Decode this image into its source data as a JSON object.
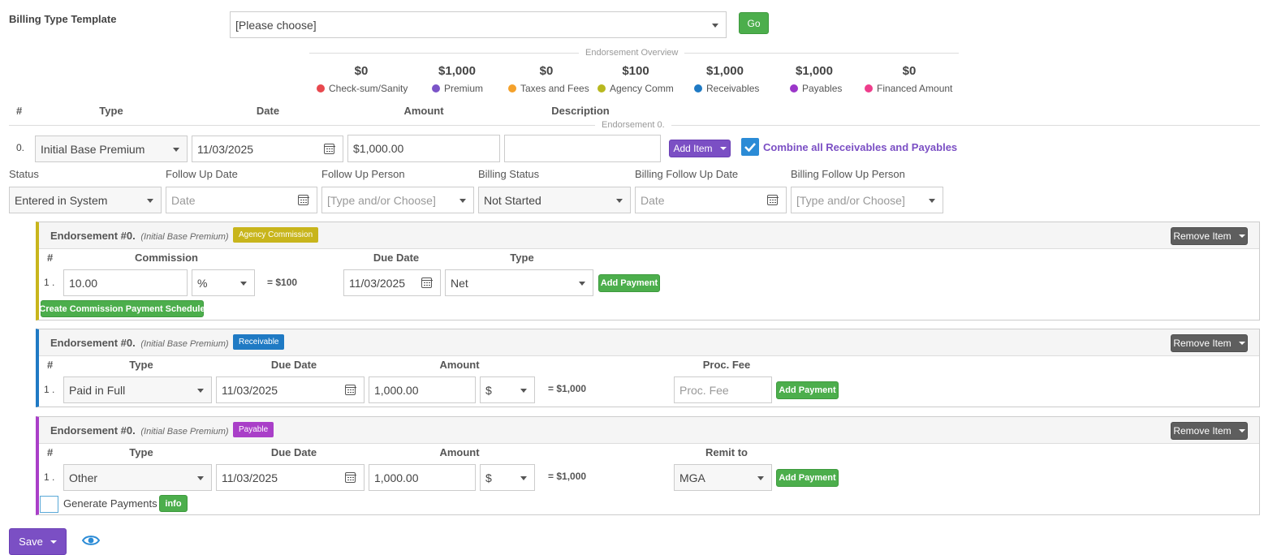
{
  "billing_template": {
    "label": "Billing Type Template",
    "select_value": "[Please choose]",
    "go_label": "Go"
  },
  "overview": {
    "title": "Endorsement Overview",
    "items": [
      {
        "value": "$0",
        "label": "Check-sum/Sanity",
        "color": "#e8484e"
      },
      {
        "value": "$1,000",
        "label": "Premium",
        "color": "#7b54c8"
      },
      {
        "value": "$0",
        "label": "Taxes and Fees",
        "color": "#f4a12b"
      },
      {
        "value": "$100",
        "label": "Agency Comm",
        "color": "#b8b81f"
      },
      {
        "value": "$1,000",
        "label": "Receivables",
        "color": "#1f7ac4"
      },
      {
        "value": "$1,000",
        "label": "Payables",
        "color": "#9b36c9"
      },
      {
        "value": "$0",
        "label": "Financed Amount",
        "color": "#ee3d8b"
      }
    ]
  },
  "items_table": {
    "headers": {
      "num": "#",
      "type": "Type",
      "date": "Date",
      "amount": "Amount",
      "description": "Description"
    },
    "endorsement_divider": "Endorsement 0.",
    "row": {
      "num": "0.",
      "type": "Initial Base Premium",
      "date": "11/03/2025",
      "amount": "$1,000.00",
      "description": ""
    },
    "add_item_label": "Add Item",
    "combine_label": "Combine all Receivables and Payables"
  },
  "status_row": {
    "labels": {
      "status": "Status",
      "follow_up_date": "Follow Up Date",
      "follow_up_person": "Follow Up Person",
      "billing_status": "Billing Status",
      "billing_follow_up_date": "Billing Follow Up Date",
      "billing_follow_up_person": "Billing Follow Up Person"
    },
    "status_value": "Entered in System",
    "follow_up_date_placeholder": "Date",
    "follow_up_person_placeholder": "[Type and/or Choose]",
    "billing_status_value": "Not Started",
    "billing_follow_up_date_placeholder": "Date",
    "billing_follow_up_person_placeholder": "[Type and/or Choose]"
  },
  "commission_panel": {
    "title": "Endorsement #0.",
    "subtitle": "(Initial Base Premium)",
    "badge": "Agency Commission",
    "badge_color": "#c8b51c",
    "remove_label": "Remove Item",
    "headers": {
      "num": "#",
      "commission": "Commission",
      "due_date": "Due Date",
      "type": "Type"
    },
    "row": {
      "num": "1 .",
      "commission": "10.00",
      "unit": "%",
      "equals": "= $100",
      "due_date": "11/03/2025",
      "type": "Net"
    },
    "add_payment_label": "Add Payment",
    "schedule_label": "Create Commission Payment Schedule"
  },
  "receivable_panel": {
    "title": "Endorsement #0.",
    "subtitle": "(Initial Base Premium)",
    "badge": "Receivable",
    "badge_color": "#1f7ac4",
    "remove_label": "Remove Item",
    "headers": {
      "num": "#",
      "type": "Type",
      "due_date": "Due Date",
      "amount": "Amount",
      "proc_fee": "Proc. Fee"
    },
    "row": {
      "num": "1 .",
      "type": "Paid in Full",
      "due_date": "11/03/2025",
      "amount": "1,000.00",
      "unit": "$",
      "equals": "= $1,000",
      "proc_fee_placeholder": "Proc. Fee"
    },
    "add_payment_label": "Add Payment"
  },
  "payable_panel": {
    "title": "Endorsement #0.",
    "subtitle": "(Initial Base Premium)",
    "badge": "Payable",
    "badge_color": "#a93fc8",
    "remove_label": "Remove Item",
    "headers": {
      "num": "#",
      "type": "Type",
      "due_date": "Due Date",
      "amount": "Amount",
      "remit_to": "Remit to"
    },
    "row": {
      "num": "1 .",
      "type": "Other",
      "due_date": "11/03/2025",
      "amount": "1,000.00",
      "unit": "$",
      "equals": "= $1,000",
      "remit_to": "MGA"
    },
    "add_payment_label": "Add Payment",
    "generate_payments_label": "Generate Payments",
    "info_label": "info"
  },
  "footer": {
    "save_label": "Save"
  }
}
